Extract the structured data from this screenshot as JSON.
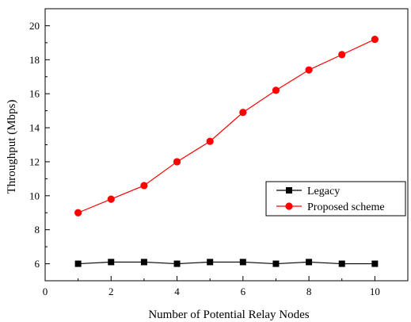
{
  "chart_data": {
    "type": "line",
    "title": "",
    "xlabel": "Number of Potential Relay Nodes",
    "ylabel": "Throughput (Mbps)",
    "xlim": [
      0,
      11
    ],
    "ylim": [
      5,
      21
    ],
    "xticks": [
      0,
      2,
      4,
      6,
      8,
      10
    ],
    "yticks": [
      6,
      8,
      10,
      12,
      14,
      16,
      18,
      20
    ],
    "grid": false,
    "legend_position": "right",
    "series": [
      {
        "name": "Legacy",
        "color": "#000000",
        "marker": "square",
        "x": [
          1,
          2,
          3,
          4,
          5,
          6,
          7,
          8,
          9,
          10
        ],
        "y": [
          6.0,
          6.1,
          6.1,
          6.0,
          6.1,
          6.1,
          6.0,
          6.1,
          6.0,
          6.0
        ]
      },
      {
        "name": "Proposed scheme",
        "color": "#ff0000",
        "marker": "circle",
        "x": [
          1,
          2,
          3,
          4,
          5,
          6,
          7,
          8,
          9,
          10
        ],
        "y": [
          9.0,
          9.8,
          10.6,
          12.0,
          13.2,
          14.9,
          16.2,
          17.4,
          18.3,
          19.2
        ]
      }
    ]
  }
}
